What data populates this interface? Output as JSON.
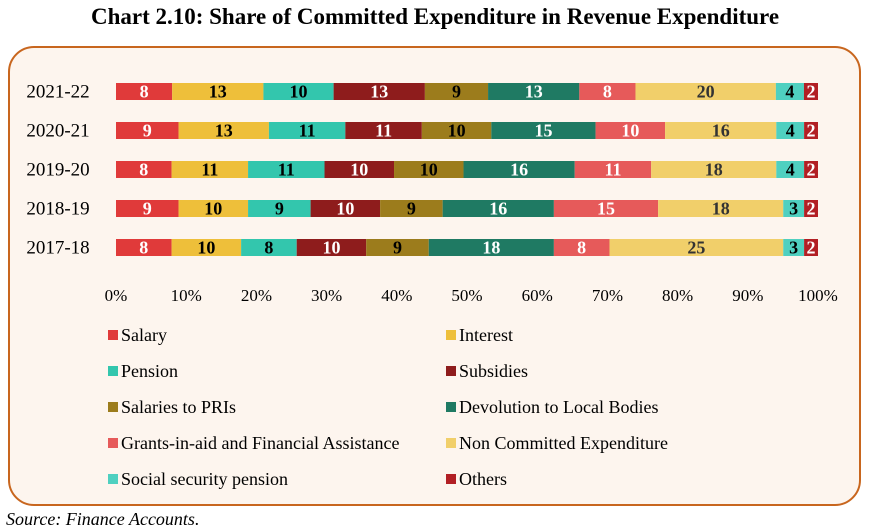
{
  "title": "Chart 2.10: Share of Committed Expenditure in Revenue Expenditure",
  "source": "Source: Finance Accounts.",
  "chart_data": {
    "type": "bar",
    "orientation": "horizontal",
    "stacked": "100%",
    "categories": [
      "2021-22",
      "2020-21",
      "2019-20",
      "2018-19",
      "2017-18"
    ],
    "series": [
      {
        "name": "Salary",
        "color": "#e03a3a",
        "label_color": "#ffffff",
        "values": [
          8,
          9,
          8,
          9,
          8
        ]
      },
      {
        "name": "Interest",
        "color": "#eebf3a",
        "label_color": "#000000",
        "values": [
          13,
          13,
          11,
          10,
          10
        ]
      },
      {
        "name": "Pension",
        "color": "#33c6ad",
        "label_color": "#000000",
        "values": [
          10,
          11,
          11,
          9,
          8
        ]
      },
      {
        "name": "Subsidies",
        "color": "#8e1c1c",
        "label_color": "#ffffff",
        "values": [
          13,
          11,
          10,
          10,
          10
        ]
      },
      {
        "name": "Salaries to PRIs",
        "color": "#9c7c1c",
        "label_color": "#000000",
        "values": [
          9,
          10,
          10,
          9,
          9
        ]
      },
      {
        "name": "Devolution to Local Bodies",
        "color": "#1f7a63",
        "label_color": "#ffffff",
        "values": [
          13,
          15,
          16,
          16,
          18
        ]
      },
      {
        "name": "Grants-in-aid and Financial Assistance",
        "color": "#e65a5a",
        "label_color": "#ffffff",
        "values": [
          8,
          10,
          11,
          15,
          8
        ]
      },
      {
        "name": "Non Committed Expenditure",
        "color": "#f1cf6a",
        "label_color": "#333333",
        "values": [
          20,
          16,
          18,
          18,
          25
        ]
      },
      {
        "name": "Social security pension",
        "color": "#4fd0c0",
        "label_color": "#000000",
        "values": [
          4,
          4,
          4,
          3,
          3
        ]
      },
      {
        "name": "Others",
        "color": "#b21f24",
        "label_color": "#ffffff",
        "values": [
          2,
          2,
          2,
          2,
          2
        ]
      }
    ],
    "xlim": [
      0,
      100
    ],
    "xticks": [
      "0%",
      "10%",
      "20%",
      "30%",
      "40%",
      "50%",
      "60%",
      "70%",
      "80%",
      "90%",
      "100%"
    ],
    "grid": false,
    "legend_placement": "bottom"
  }
}
